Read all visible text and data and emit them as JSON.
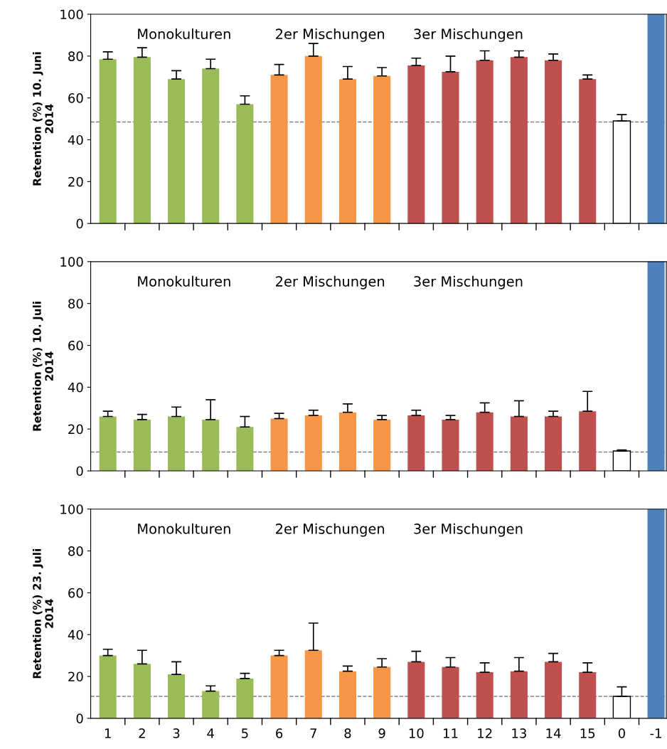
{
  "chart_data": [
    {
      "type": "bar",
      "ylabel": "Retention (%) 10. Juni\n2014",
      "categories": [
        "1",
        "2",
        "3",
        "4",
        "5",
        "6",
        "7",
        "8",
        "9",
        "10",
        "11",
        "12",
        "13",
        "14",
        "15",
        "0",
        "-1"
      ],
      "values": [
        78.5,
        79.5,
        69,
        74,
        57,
        71,
        80,
        69,
        70.5,
        75.5,
        72.5,
        78,
        79.5,
        78,
        69,
        49,
        100
      ],
      "errors": [
        [
          78.5,
          82
        ],
        [
          79.5,
          84
        ],
        [
          69,
          73
        ],
        [
          74,
          78.5
        ],
        [
          57,
          61
        ],
        [
          71,
          76
        ],
        [
          80,
          86
        ],
        [
          69,
          75
        ],
        [
          70.5,
          74.5
        ],
        [
          75.5,
          79
        ],
        [
          72.5,
          80
        ],
        [
          78,
          82.5
        ],
        [
          79.5,
          82.5
        ],
        [
          78,
          81
        ],
        [
          69,
          71
        ],
        [
          49,
          52
        ],
        null
      ],
      "colors": [
        "#9bbb59",
        "#9bbb59",
        "#9bbb59",
        "#9bbb59",
        "#9bbb59",
        "#f79646",
        "#f79646",
        "#f79646",
        "#f79646",
        "#c0504d",
        "#c0504d",
        "#c0504d",
        "#c0504d",
        "#c0504d",
        "#c0504d",
        "#ffffff",
        "#4f81bd"
      ],
      "ylim": [
        0,
        100
      ],
      "yticks": [
        0,
        20,
        40,
        60,
        80,
        100
      ],
      "tick_labels": "y",
      "grid": false,
      "legend": false,
      "ref_lines": [
        {
          "axis": "y",
          "value": 48.5,
          "color": "#808080",
          "line_style": "dashed"
        }
      ],
      "annotations": [
        "Monokulturen",
        "2er Mischungen",
        "3er Mischungen"
      ]
    },
    {
      "type": "bar",
      "ylabel": "Retention (%) 10. Juli\n2014",
      "categories": [
        "1",
        "2",
        "3",
        "4",
        "5",
        "6",
        "7",
        "8",
        "9",
        "10",
        "11",
        "12",
        "13",
        "14",
        "15",
        "0",
        "-1"
      ],
      "values": [
        26,
        24.5,
        26,
        24.5,
        21,
        25,
        26.5,
        28,
        24.5,
        26.5,
        24.5,
        28,
        26,
        26,
        28.5,
        9.5,
        100
      ],
      "errors": [
        [
          26,
          28.5
        ],
        [
          24.5,
          27
        ],
        [
          26,
          30.5
        ],
        [
          24.5,
          34
        ],
        [
          21,
          26
        ],
        [
          25,
          27.5
        ],
        [
          26.5,
          29
        ],
        [
          28,
          32
        ],
        [
          24.5,
          26.5
        ],
        [
          26.5,
          29
        ],
        [
          24.5,
          26.5
        ],
        [
          28,
          32.5
        ],
        [
          26,
          33.5
        ],
        [
          26,
          28.5
        ],
        [
          28.5,
          38
        ],
        [
          9.5,
          10
        ],
        null
      ],
      "colors": [
        "#9bbb59",
        "#9bbb59",
        "#9bbb59",
        "#9bbb59",
        "#9bbb59",
        "#f79646",
        "#f79646",
        "#f79646",
        "#f79646",
        "#c0504d",
        "#c0504d",
        "#c0504d",
        "#c0504d",
        "#c0504d",
        "#c0504d",
        "#ffffff",
        "#4f81bd"
      ],
      "ylim": [
        0,
        100
      ],
      "yticks": [
        0,
        20,
        40,
        60,
        80,
        100
      ],
      "tick_labels": "y",
      "grid": false,
      "legend": false,
      "ref_lines": [
        {
          "axis": "y",
          "value": 9,
          "color": "#808080",
          "line_style": "dashed"
        }
      ],
      "annotations": [
        "Monokulturen",
        "2er Mischungen",
        "3er Mischungen"
      ]
    },
    {
      "type": "bar",
      "ylabel": "Retention (%) 23. Juli\n2014",
      "categories": [
        "1",
        "2",
        "3",
        "4",
        "5",
        "6",
        "7",
        "8",
        "9",
        "10",
        "11",
        "12",
        "13",
        "14",
        "15",
        "0",
        "-1"
      ],
      "values": [
        30,
        26,
        21,
        13,
        19,
        30,
        32.5,
        22.5,
        24.5,
        27,
        24.5,
        22,
        22.5,
        27,
        22,
        10.5,
        100
      ],
      "errors": [
        [
          30,
          33
        ],
        [
          26,
          32.5
        ],
        [
          21,
          27
        ],
        [
          13,
          15.5
        ],
        [
          19,
          21.5
        ],
        [
          30,
          32.5
        ],
        [
          32.5,
          45.5
        ],
        [
          22.5,
          25
        ],
        [
          24.5,
          28.5
        ],
        [
          27,
          32
        ],
        [
          24.5,
          29
        ],
        [
          22,
          26.5
        ],
        [
          22.5,
          29
        ],
        [
          27,
          31
        ],
        [
          22,
          26.5
        ],
        [
          10.5,
          15
        ],
        null
      ],
      "colors": [
        "#9bbb59",
        "#9bbb59",
        "#9bbb59",
        "#9bbb59",
        "#9bbb59",
        "#f79646",
        "#f79646",
        "#f79646",
        "#f79646",
        "#c0504d",
        "#c0504d",
        "#c0504d",
        "#c0504d",
        "#c0504d",
        "#c0504d",
        "#ffffff",
        "#4f81bd"
      ],
      "ylim": [
        0,
        100
      ],
      "yticks": [
        0,
        20,
        40,
        60,
        80,
        100
      ],
      "grid": false,
      "legend": false,
      "ref_lines": [
        {
          "axis": "y",
          "value": 10.5,
          "color": "#808080",
          "line_style": "dashed"
        }
      ],
      "annotations": [
        "Monokulturen",
        "2er Mischungen",
        "3er Mischungen"
      ]
    }
  ]
}
